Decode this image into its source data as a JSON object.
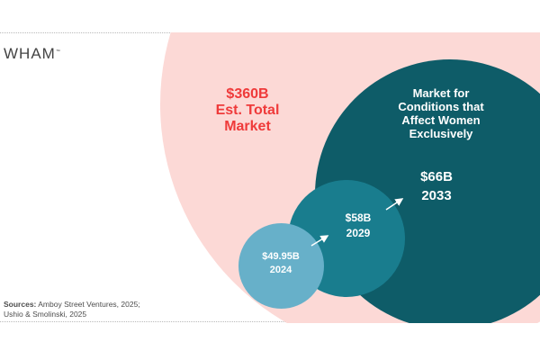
{
  "brand": {
    "logo_text": "WHAM",
    "logo_mark": "™"
  },
  "total": {
    "value": "$360B",
    "line1": "Est. Total",
    "line2": "Market"
  },
  "women_market": {
    "line1": "Market for",
    "line2": "Conditions that",
    "line3": "Affect Women",
    "line4": "Exclusively"
  },
  "stages": [
    {
      "value": "$49.95B",
      "year": "2024"
    },
    {
      "value": "$58B",
      "year": "2029"
    },
    {
      "value": "$66B",
      "year": "2033"
    }
  ],
  "sources": {
    "heading": "Sources:",
    "line1": " Amboy Street Ventures, 2025;",
    "line2": "Ushio & Smolinski, 2025"
  },
  "colors": {
    "total_fill": "#fcd9d6",
    "total_text": "#ef3a3a",
    "women_fill": "#0e5c68",
    "stage_2029_fill": "#197d8e",
    "stage_2024_fill": "#67b0c9",
    "arrow": "#ffffff"
  }
}
